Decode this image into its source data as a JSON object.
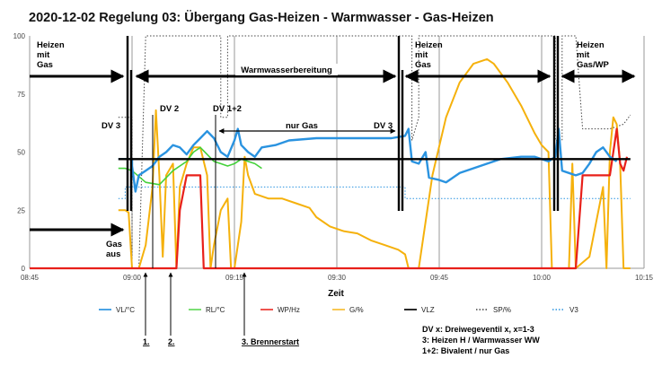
{
  "chart_data": {
    "type": "line",
    "title": "2020-12-02   Regelung 03: Übergang Gas-Heizen - Warmwasser - Gas-Heizen",
    "xlabel": "Zeit",
    "ylabel": "",
    "xlim": [
      "08:45",
      "10:15"
    ],
    "ylim": [
      0,
      100
    ],
    "x_ticks": [
      "08:45",
      "09:00",
      "09:15",
      "09:30",
      "09:45",
      "10:00",
      "10:15"
    ],
    "y_ticks": [
      0,
      25,
      50,
      75,
      100
    ],
    "grid": "vertical",
    "legend_position": "bottom",
    "series": [
      {
        "name": "VL/°C",
        "color": "#2a93e0",
        "style": "solid",
        "width": 2.4,
        "points": [
          [
            "08:58",
            47
          ],
          [
            "09:00",
            47
          ],
          [
            "09:00",
            44
          ],
          [
            "09:00.5",
            33
          ],
          [
            "09:01",
            40
          ],
          [
            "09:02",
            42
          ],
          [
            "09:03",
            44
          ],
          [
            "09:04",
            48
          ],
          [
            "09:05",
            50
          ],
          [
            "09:06",
            53
          ],
          [
            "09:07",
            52
          ],
          [
            "09:08",
            49
          ],
          [
            "09:09",
            53
          ],
          [
            "09:10",
            56
          ],
          [
            "09:11",
            59
          ],
          [
            "09:12",
            56
          ],
          [
            "09:13",
            50
          ],
          [
            "09:14",
            48
          ],
          [
            "09:15",
            55
          ],
          [
            "09:15.5",
            60
          ],
          [
            "09:16",
            53
          ],
          [
            "09:17",
            50
          ],
          [
            "09:18",
            48
          ],
          [
            "09:19",
            52
          ],
          [
            "09:21",
            53
          ],
          [
            "09:23",
            55
          ],
          [
            "09:27",
            56
          ],
          [
            "09:31",
            56
          ],
          [
            "09:35",
            56
          ],
          [
            "09:38",
            56
          ],
          [
            "09:40",
            57
          ],
          [
            "09:40.5",
            60
          ],
          [
            "09:41",
            46
          ],
          [
            "09:42",
            45
          ],
          [
            "09:43",
            50
          ],
          [
            "09:43.5",
            39
          ],
          [
            "09:45",
            38
          ],
          [
            "09:46",
            37
          ],
          [
            "09:48",
            41
          ],
          [
            "09:51",
            44
          ],
          [
            "09:54",
            47
          ],
          [
            "09:57",
            48
          ],
          [
            "09:59",
            48
          ],
          [
            "10:01",
            46
          ],
          [
            "10:02",
            48
          ],
          [
            "10:02.5",
            60
          ],
          [
            "10:03",
            42
          ],
          [
            "10:05",
            40
          ],
          [
            "10:06",
            41
          ],
          [
            "10:07",
            45
          ],
          [
            "10:08",
            50
          ],
          [
            "10:09",
            52
          ],
          [
            "10:10",
            48
          ],
          [
            "10:11",
            46
          ]
        ]
      },
      {
        "name": "RL/°C",
        "color": "#44d13a",
        "style": "solid",
        "width": 1.6,
        "points": [
          [
            "08:58",
            43
          ],
          [
            "08:59",
            43
          ],
          [
            "09:00",
            42
          ],
          [
            "09:02",
            37
          ],
          [
            "09:04",
            36
          ],
          [
            "09:06",
            42
          ],
          [
            "09:08",
            46
          ],
          [
            "09:09",
            50
          ],
          [
            "09:10",
            52
          ],
          [
            "09:11",
            49
          ],
          [
            "09:12",
            46
          ],
          [
            "09:13",
            45
          ],
          [
            "09:14",
            44
          ],
          [
            "09:15",
            45
          ],
          [
            "09:16",
            47
          ],
          [
            "09:17",
            46
          ],
          [
            "09:18",
            45
          ],
          [
            "09:19",
            43
          ]
        ]
      },
      {
        "name": "WP/Hz",
        "color": "#e8201a",
        "style": "solid",
        "width": 2.2,
        "points": [
          [
            "08:45",
            0
          ],
          [
            "09:06.5",
            0
          ],
          [
            "09:07",
            25
          ],
          [
            "09:08",
            40
          ],
          [
            "09:09",
            40
          ],
          [
            "09:10",
            40
          ],
          [
            "09:10.5",
            0
          ],
          [
            "10:05",
            0
          ],
          [
            "10:06",
            40
          ],
          [
            "10:08",
            40
          ],
          [
            "10:10",
            40
          ],
          [
            "10:11",
            60
          ],
          [
            "10:11.5",
            45
          ],
          [
            "10:12",
            42
          ],
          [
            "10:12.5",
            48
          ]
        ]
      },
      {
        "name": "G/%",
        "color": "#f5b10c",
        "style": "solid",
        "width": 2,
        "points": [
          [
            "08:58",
            25
          ],
          [
            "08:59",
            25
          ],
          [
            "08:59.5",
            24
          ],
          [
            "09:00",
            0
          ],
          [
            "09:01",
            0
          ],
          [
            "09:02",
            10
          ],
          [
            "09:03",
            35
          ],
          [
            "09:03.5",
            68
          ],
          [
            "09:04",
            40
          ],
          [
            "09:04.5",
            5
          ],
          [
            "09:05",
            40
          ],
          [
            "09:06",
            45
          ],
          [
            "09:06.5",
            0
          ],
          [
            "09:07",
            35
          ],
          [
            "09:08",
            45
          ],
          [
            "09:09",
            52
          ],
          [
            "09:10",
            52
          ],
          [
            "09:11",
            40
          ],
          [
            "09:11.5",
            0
          ],
          [
            "09:12",
            10
          ],
          [
            "09:13",
            25
          ],
          [
            "09:14",
            30
          ],
          [
            "09:14.5",
            0
          ],
          [
            "09:15",
            0
          ],
          [
            "09:16",
            20
          ],
          [
            "09:16.5",
            48
          ],
          [
            "09:17",
            40
          ],
          [
            "09:18",
            32
          ],
          [
            "09:20",
            30
          ],
          [
            "09:22",
            30
          ],
          [
            "09:24",
            28
          ],
          [
            "09:26",
            26
          ],
          [
            "09:27",
            22
          ],
          [
            "09:29",
            18
          ],
          [
            "09:31",
            16
          ],
          [
            "09:33",
            15
          ],
          [
            "09:35",
            12
          ],
          [
            "09:37",
            10
          ],
          [
            "09:39",
            8
          ],
          [
            "09:40",
            6
          ],
          [
            "09:40.5",
            0
          ],
          [
            "09:42",
            0
          ],
          [
            "09:43",
            20
          ],
          [
            "09:44",
            40
          ],
          [
            "09:46",
            65
          ],
          [
            "09:48",
            80
          ],
          [
            "09:50",
            88
          ],
          [
            "09:52",
            90
          ],
          [
            "09:53",
            88
          ],
          [
            "09:55",
            80
          ],
          [
            "09:57",
            70
          ],
          [
            "09:59",
            58
          ],
          [
            "10:00",
            53
          ],
          [
            "10:01",
            50
          ],
          [
            "10:01.5",
            0
          ],
          [
            "10:02",
            0
          ],
          [
            "10:03",
            0
          ],
          [
            "10:04",
            0
          ],
          [
            "10:04.5",
            45
          ],
          [
            "10:05",
            0
          ],
          [
            "10:07",
            5
          ],
          [
            "10:08",
            20
          ],
          [
            "10:09",
            35
          ],
          [
            "10:09.5",
            0
          ],
          [
            "10:10",
            50
          ],
          [
            "10:10.5",
            65
          ],
          [
            "10:11",
            62
          ],
          [
            "10:11.5",
            45
          ],
          [
            "10:12",
            0
          ],
          [
            "10:13",
            0
          ]
        ]
      },
      {
        "name": "VLZ",
        "color": "#000000",
        "style": "solid",
        "width": 2.4,
        "points": [
          [
            "08:58",
            47
          ],
          [
            "10:13",
            47
          ]
        ]
      },
      {
        "name": "SP/%",
        "color": "#444444",
        "style": "dotted",
        "width": 1,
        "points": [
          [
            "08:58",
            65
          ],
          [
            "09:00",
            65
          ],
          [
            "09:00",
            0
          ],
          [
            "09:01",
            0
          ],
          [
            "09:02",
            100
          ],
          [
            "09:07",
            100
          ],
          [
            "09:09",
            100
          ],
          [
            "09:10",
            100
          ],
          [
            "09:12",
            100
          ],
          [
            "09:13",
            100
          ],
          [
            "09:13",
            65
          ],
          [
            "09:14",
            65
          ],
          [
            "09:14",
            100
          ],
          [
            "09:40",
            100
          ],
          [
            "09:41",
            100
          ],
          [
            "09:41",
            55
          ],
          [
            "09:42",
            65
          ],
          [
            "09:42",
            100
          ],
          [
            "10:01",
            100
          ],
          [
            "10:02",
            100
          ],
          [
            "10:02",
            55
          ],
          [
            "10:03",
            55
          ],
          [
            "10:03",
            100
          ],
          [
            "10:05",
            100
          ],
          [
            "10:06",
            60
          ],
          [
            "10:10",
            60
          ],
          [
            "10:12",
            62
          ],
          [
            "10:13",
            66
          ]
        ]
      },
      {
        "name": "V3",
        "color": "#2a93e0",
        "style": "dotted",
        "width": 1,
        "points": [
          [
            "08:58",
            30
          ],
          [
            "08:59",
            30
          ],
          [
            "08:59",
            35
          ],
          [
            "09:40",
            35
          ],
          [
            "09:40",
            30
          ],
          [
            "10:13",
            30
          ]
        ]
      }
    ],
    "annotations": [
      {
        "text": "Heizen\nmit\nGas"
      },
      {
        "text": "Warmwasserbereitung"
      },
      {
        "text": "Heizen\nmit\nGas"
      },
      {
        "text": "Heizen\nmit\nGas/WP"
      },
      {
        "text": "DV 3"
      },
      {
        "text": "DV 2"
      },
      {
        "text": "DV 1+2"
      },
      {
        "text": "nur Gas"
      },
      {
        "text": "DV 3"
      },
      {
        "text": "Gas\naus"
      }
    ],
    "footnotes": [
      "1.",
      "2.",
      "3. Brennerstart"
    ],
    "legend_note": [
      "DV x: Dreiwegeventil x, x=1-3",
      "3: Heizen H / Warmwasser WW",
      "1+2: Bivalent / nur Gas"
    ]
  }
}
